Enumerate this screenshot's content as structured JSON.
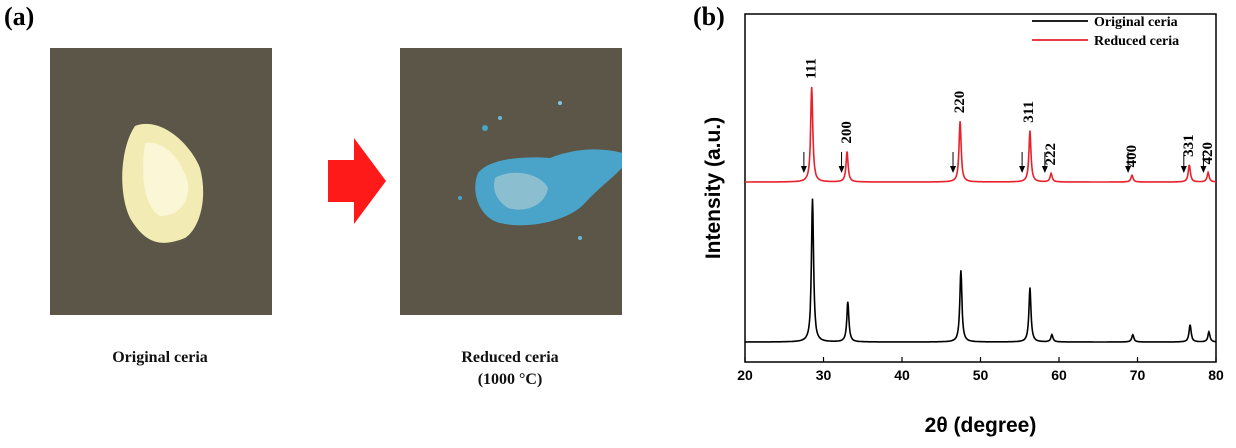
{
  "panels": {
    "a_label": "(a)",
    "b_label": "(b)"
  },
  "photos": {
    "left_caption": "Original ceria",
    "right_caption_line1": "Reduced ceria",
    "right_caption_line2": "(1000 °C)",
    "arrow_color": "#ff1a1a",
    "background_color": "#5b5648",
    "original_powder_color": "#f2ecb4",
    "reduced_powder_color": "#4aa3c8"
  },
  "chart_data": {
    "type": "line",
    "xlabel": "2θ  (degree)",
    "ylabel": "Intensity (a.u.)",
    "xlim": [
      20,
      80
    ],
    "xticks": [
      "20",
      "30",
      "40",
      "50",
      "60",
      "70",
      "80"
    ],
    "legend_position": "top-right",
    "series": [
      {
        "name": "Original ceria",
        "color": "#000000",
        "peaks": [
          {
            "x": 28.6,
            "height": 1.0
          },
          {
            "x": 33.1,
            "height": 0.28
          },
          {
            "x": 47.5,
            "height": 0.5
          },
          {
            "x": 56.3,
            "height": 0.38
          },
          {
            "x": 59.1,
            "height": 0.05
          },
          {
            "x": 69.4,
            "height": 0.05
          },
          {
            "x": 76.7,
            "height": 0.12
          },
          {
            "x": 79.1,
            "height": 0.07
          }
        ]
      },
      {
        "name": "Reduced ceria",
        "color": "#e8212a",
        "peaks": [
          {
            "x": 28.5,
            "height": 1.0
          },
          {
            "x": 33.0,
            "height": 0.32
          },
          {
            "x": 47.4,
            "height": 0.64
          },
          {
            "x": 56.3,
            "height": 0.54
          },
          {
            "x": 59.0,
            "height": 0.09
          },
          {
            "x": 69.3,
            "height": 0.07
          },
          {
            "x": 76.6,
            "height": 0.18
          },
          {
            "x": 79.0,
            "height": 0.1
          }
        ]
      }
    ],
    "peak_labels": [
      {
        "text": "111",
        "x": 28.6
      },
      {
        "text": "200",
        "x": 33.1
      },
      {
        "text": "220",
        "x": 47.5
      },
      {
        "text": "311",
        "x": 56.3
      },
      {
        "text": "222",
        "x": 59.1
      },
      {
        "text": "400",
        "x": 69.4
      },
      {
        "text": "331",
        "x": 76.7
      },
      {
        "text": "420",
        "x": 79.1
      }
    ],
    "arrow_markers": [
      27.5,
      32.3,
      46.5,
      55.3,
      58.2,
      68.8,
      75.9,
      78.4
    ]
  }
}
